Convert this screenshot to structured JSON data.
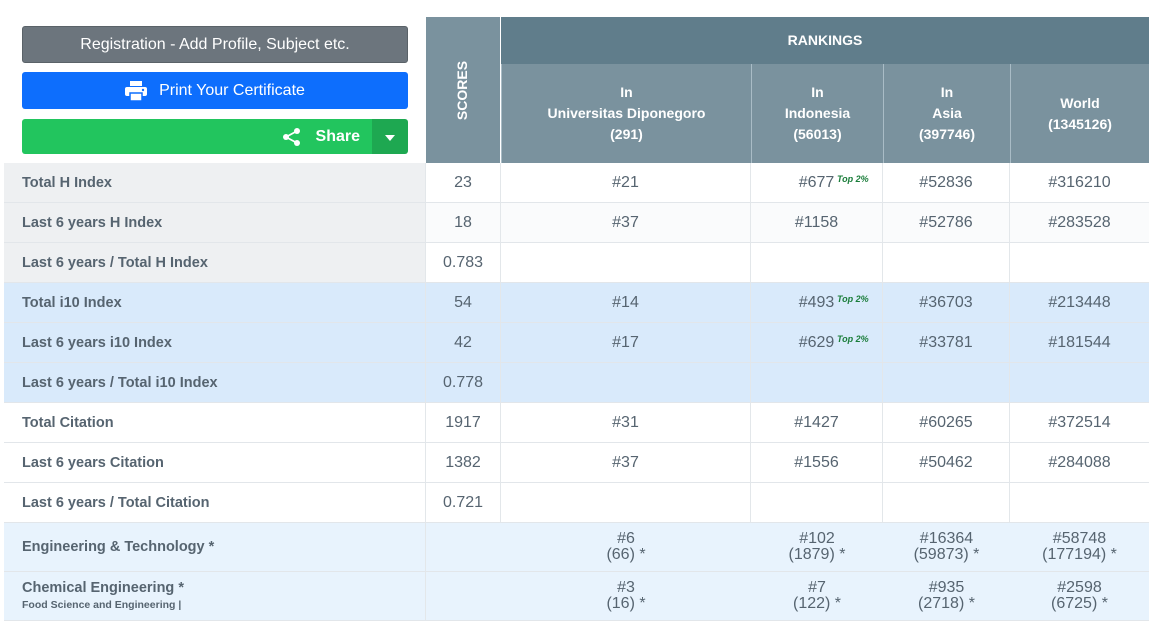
{
  "buttons": {
    "registration": "Registration - Add Profile, Subject etc.",
    "print": "Print Your Certificate",
    "share": "Share"
  },
  "header": {
    "scores": "SCORES",
    "rankings": "RANKINGS",
    "columns": [
      {
        "line1": "In",
        "line2": "Universitas Diponegoro",
        "line3": "(291)"
      },
      {
        "line1": "In",
        "line2": "Indonesia",
        "line3": "(56013)"
      },
      {
        "line1": "In",
        "line2": "Asia",
        "line3": "(397746)"
      },
      {
        "line1": "World",
        "line2": "(1345126)",
        "line3": ""
      }
    ]
  },
  "rows": [
    {
      "label": "Total H Index",
      "score": "23",
      "r1": "#21",
      "r2": "#677",
      "r2_badge": "Top 2%",
      "r3": "#52836",
      "r4": "#316210"
    },
    {
      "label": "Last 6 years H Index",
      "score": "18",
      "r1": "#37",
      "r2": "#1158",
      "r2_badge": "",
      "r3": "#52786",
      "r4": "#283528"
    },
    {
      "label": "Last 6 years / Total H Index",
      "score": "0.783",
      "r1": "",
      "r2": "",
      "r2_badge": "",
      "r3": "",
      "r4": ""
    },
    {
      "label": "Total i10 Index",
      "score": "54",
      "r1": "#14",
      "r2": "#493",
      "r2_badge": "Top 2%",
      "r3": "#36703",
      "r4": "#213448"
    },
    {
      "label": "Last 6 years i10 Index",
      "score": "42",
      "r1": "#17",
      "r2": "#629",
      "r2_badge": "Top 2%",
      "r3": "#33781",
      "r4": "#181544"
    },
    {
      "label": "Last 6 years / Total i10 Index",
      "score": "0.778",
      "r1": "",
      "r2": "",
      "r2_badge": "",
      "r3": "",
      "r4": ""
    },
    {
      "label": "Total Citation",
      "score": "1917",
      "r1": "#31",
      "r2": "#1427",
      "r2_badge": "",
      "r3": "#60265",
      "r4": "#372514"
    },
    {
      "label": "Last 6 years Citation",
      "score": "1382",
      "r1": "#37",
      "r2": "#1556",
      "r2_badge": "",
      "r3": "#50462",
      "r4": "#284088"
    },
    {
      "label": "Last 6 years / Total Citation",
      "score": "0.721",
      "r1": "",
      "r2": "",
      "r2_badge": "",
      "r3": "",
      "r4": ""
    }
  ],
  "subjects": [
    {
      "label": "Engineering & Technology *",
      "sublabel": "",
      "r1": "#6",
      "r1b": "(66) *",
      "r2": "#102",
      "r2b": "(1879) *",
      "r3": "#16364",
      "r3b": "(59873) *",
      "r4": "#58748",
      "r4b": "(177194) *"
    },
    {
      "label": "Chemical Engineering *",
      "sublabel": "Food Science and Engineering |",
      "r1": "#3",
      "r1b": "(16) *",
      "r2": "#7",
      "r2b": "(122) *",
      "r3": "#935",
      "r3b": "(2718) *",
      "r4": "#2598",
      "r4b": "(6725) *"
    }
  ],
  "colors": {
    "print": "#0d6efd",
    "share": "#22c55e",
    "registration": "#6c757d",
    "header": "#607d8b",
    "highlight": "#d9eafb"
  }
}
